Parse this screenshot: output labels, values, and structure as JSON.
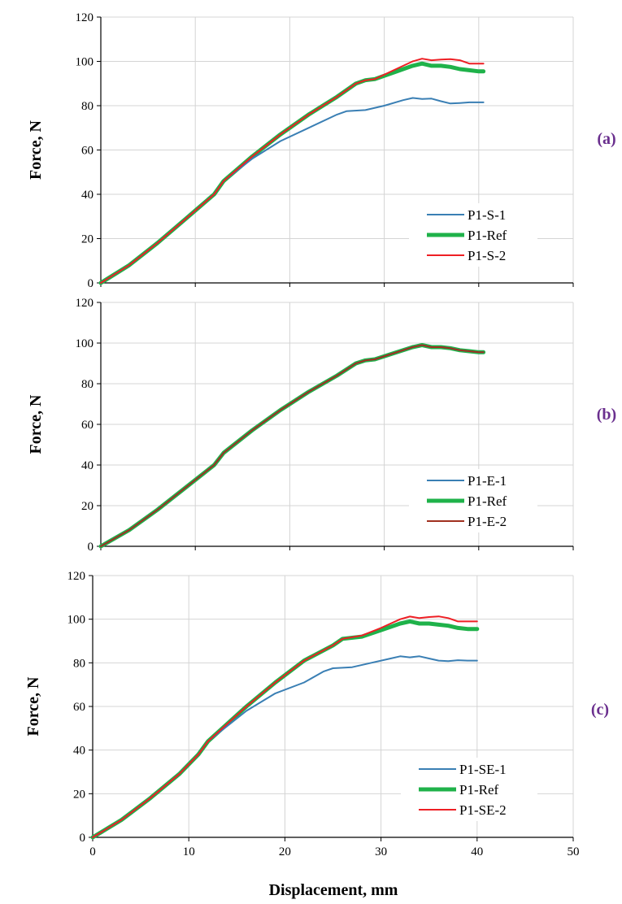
{
  "figure": {
    "xlabel": "Displacement, mm"
  },
  "chart_data": [
    {
      "type": "line",
      "panel_label": "(a)",
      "ylabel": "Force, N",
      "xlim": [
        0,
        50
      ],
      "ylim": [
        0,
        120
      ],
      "yticks": [
        "0",
        "20",
        "40",
        "60",
        "80",
        "100",
        "120"
      ],
      "xticks": [],
      "grid": true,
      "legend_position": "bottom-right",
      "series": [
        {
          "name": "P1-S-1",
          "color": "#3a7fb4",
          "points": [
            [
              0,
              0
            ],
            [
              3,
              8
            ],
            [
              6,
              18
            ],
            [
              9,
              29
            ],
            [
              12,
              40
            ],
            [
              13,
              46
            ],
            [
              16,
              56
            ],
            [
              19,
              64
            ],
            [
              22,
              70
            ],
            [
              25,
              76
            ],
            [
              26,
              77.5
            ],
            [
              28,
              78
            ],
            [
              30,
              80
            ],
            [
              32,
              82.5
            ],
            [
              33,
              83.5
            ],
            [
              34,
              83
            ],
            [
              35,
              83.2
            ],
            [
              36,
              82
            ],
            [
              37,
              81
            ],
            [
              38,
              81.2
            ],
            [
              39,
              81.5
            ],
            [
              40,
              81.5
            ],
            [
              40.5,
              81.5
            ]
          ]
        },
        {
          "name": "P1-Ref",
          "color": "#1fb24a",
          "points": [
            [
              0,
              0
            ],
            [
              3,
              8
            ],
            [
              6,
              18
            ],
            [
              9,
              29
            ],
            [
              12,
              40
            ],
            [
              13,
              46
            ],
            [
              16,
              57
            ],
            [
              19,
              67
            ],
            [
              22,
              76
            ],
            [
              25,
              84
            ],
            [
              27,
              90
            ],
            [
              28,
              91.5
            ],
            [
              29,
              92
            ],
            [
              31,
              95
            ],
            [
              33,
              98
            ],
            [
              34,
              99
            ],
            [
              35,
              98
            ],
            [
              36,
              98
            ],
            [
              37,
              97.5
            ],
            [
              38,
              96.5
            ],
            [
              39,
              96
            ],
            [
              40,
              95.5
            ],
            [
              40.5,
              95.5
            ]
          ]
        },
        {
          "name": "P1-S-2",
          "color": "#ee1f24",
          "points": [
            [
              0,
              0
            ],
            [
              3,
              8
            ],
            [
              6,
              18
            ],
            [
              9,
              29
            ],
            [
              12,
              40
            ],
            [
              13,
              46
            ],
            [
              16,
              57
            ],
            [
              19,
              67
            ],
            [
              22,
              76
            ],
            [
              25,
              84
            ],
            [
              27,
              90
            ],
            [
              28,
              91.5
            ],
            [
              29,
              92
            ],
            [
              31,
              96
            ],
            [
              33,
              100
            ],
            [
              34,
              101.2
            ],
            [
              35,
              100.5
            ],
            [
              36,
              100.8
            ],
            [
              37,
              101
            ],
            [
              38,
              100.5
            ],
            [
              39,
              99
            ],
            [
              40,
              99
            ],
            [
              40.5,
              99
            ]
          ]
        }
      ]
    },
    {
      "type": "line",
      "panel_label": "(b)",
      "ylabel": "Force, N",
      "xlim": [
        0,
        50
      ],
      "ylim": [
        0,
        120
      ],
      "yticks": [
        "0",
        "20",
        "40",
        "60",
        "80",
        "100",
        "120"
      ],
      "xticks": [],
      "grid": true,
      "legend_position": "bottom-right",
      "series": [
        {
          "name": "P1-E-1",
          "color": "#3a7fb4",
          "points": [
            [
              0,
              0
            ],
            [
              3,
              8
            ],
            [
              6,
              18
            ],
            [
              9,
              29
            ],
            [
              12,
              40
            ],
            [
              13,
              46
            ],
            [
              16,
              57
            ],
            [
              19,
              67
            ],
            [
              22,
              76
            ],
            [
              25,
              84
            ],
            [
              27,
              90
            ],
            [
              28,
              91.5
            ],
            [
              29,
              92
            ],
            [
              31,
              95
            ],
            [
              33,
              98
            ],
            [
              34,
              99
            ],
            [
              35,
              98
            ],
            [
              36,
              98
            ],
            [
              37,
              97.5
            ],
            [
              38,
              96.5
            ],
            [
              39,
              96
            ],
            [
              40,
              95.5
            ],
            [
              40.5,
              95.5
            ]
          ]
        },
        {
          "name": "P1-Ref",
          "color": "#1fb24a",
          "points": [
            [
              0,
              0
            ],
            [
              3,
              8
            ],
            [
              6,
              18
            ],
            [
              9,
              29
            ],
            [
              12,
              40
            ],
            [
              13,
              46
            ],
            [
              16,
              57
            ],
            [
              19,
              67
            ],
            [
              22,
              76
            ],
            [
              25,
              84
            ],
            [
              27,
              90
            ],
            [
              28,
              91.5
            ],
            [
              29,
              92
            ],
            [
              31,
              95
            ],
            [
              33,
              98
            ],
            [
              34,
              99
            ],
            [
              35,
              98
            ],
            [
              36,
              98
            ],
            [
              37,
              97.5
            ],
            [
              38,
              96.5
            ],
            [
              39,
              96
            ],
            [
              40,
              95.5
            ],
            [
              40.5,
              95.5
            ]
          ]
        },
        {
          "name": "P1-E-2",
          "color": "#a0301f",
          "points": [
            [
              0,
              0
            ],
            [
              3,
              8
            ],
            [
              6,
              18
            ],
            [
              9,
              29
            ],
            [
              12,
              40
            ],
            [
              13,
              46
            ],
            [
              16,
              57
            ],
            [
              19,
              67
            ],
            [
              22,
              76
            ],
            [
              25,
              84
            ],
            [
              27,
              90
            ],
            [
              28,
              91.5
            ],
            [
              29,
              92
            ],
            [
              31,
              95
            ],
            [
              33,
              98
            ],
            [
              34,
              99
            ],
            [
              35,
              98
            ],
            [
              36,
              98
            ],
            [
              37,
              97.5
            ],
            [
              38,
              96.5
            ],
            [
              39,
              96
            ],
            [
              40,
              95.5
            ],
            [
              40.5,
              95.5
            ]
          ]
        }
      ]
    },
    {
      "type": "line",
      "panel_label": "(c)",
      "ylabel": "Force, N",
      "xlim": [
        0,
        50
      ],
      "ylim": [
        0,
        120
      ],
      "yticks": [
        "0",
        "20",
        "40",
        "60",
        "80",
        "100",
        "120"
      ],
      "xticks": [
        "0",
        "10",
        "20",
        "30",
        "40",
        "50"
      ],
      "grid": true,
      "legend_position": "bottom-right",
      "series": [
        {
          "name": "P1-SE-1",
          "color": "#3a7fb4",
          "points": [
            [
              0,
              0
            ],
            [
              3,
              8
            ],
            [
              6,
              18
            ],
            [
              9,
              29
            ],
            [
              11,
              38
            ],
            [
              12,
              44
            ],
            [
              16,
              58
            ],
            [
              19,
              66
            ],
            [
              22,
              71
            ],
            [
              24,
              76
            ],
            [
              25,
              77.5
            ],
            [
              27,
              78
            ],
            [
              29,
              80
            ],
            [
              31,
              82
            ],
            [
              32,
              83
            ],
            [
              33,
              82.5
            ],
            [
              34,
              83
            ],
            [
              35,
              82
            ],
            [
              36,
              81
            ],
            [
              37,
              80.8
            ],
            [
              38,
              81.2
            ],
            [
              39,
              81
            ],
            [
              40,
              81
            ]
          ]
        },
        {
          "name": "P1-Ref",
          "color": "#1fb24a",
          "points": [
            [
              0,
              0
            ],
            [
              3,
              8
            ],
            [
              6,
              18
            ],
            [
              9,
              29
            ],
            [
              11,
              38
            ],
            [
              12,
              44
            ],
            [
              16,
              60
            ],
            [
              19,
              71
            ],
            [
              22,
              81
            ],
            [
              25,
              88
            ],
            [
              26,
              91
            ],
            [
              28,
              92
            ],
            [
              30,
              95
            ],
            [
              32,
              98
            ],
            [
              33,
              99
            ],
            [
              34,
              98
            ],
            [
              35,
              98
            ],
            [
              36,
              97.5
            ],
            [
              37,
              97
            ],
            [
              38,
              96
            ],
            [
              39,
              95.5
            ],
            [
              40,
              95.5
            ]
          ]
        },
        {
          "name": "P1-SE-2",
          "color": "#ee1f24",
          "points": [
            [
              0,
              0
            ],
            [
              3,
              8
            ],
            [
              6,
              18
            ],
            [
              9,
              29
            ],
            [
              11,
              38
            ],
            [
              12,
              44
            ],
            [
              16,
              60
            ],
            [
              19,
              71
            ],
            [
              22,
              81
            ],
            [
              25,
              88
            ],
            [
              26,
              91
            ],
            [
              28,
              92.5
            ],
            [
              30,
              96
            ],
            [
              32,
              100
            ],
            [
              33,
              101.2
            ],
            [
              34,
              100.5
            ],
            [
              35,
              101
            ],
            [
              36,
              101.3
            ],
            [
              37,
              100.5
            ],
            [
              38,
              99
            ],
            [
              39,
              99
            ],
            [
              40,
              99
            ]
          ]
        }
      ]
    }
  ]
}
